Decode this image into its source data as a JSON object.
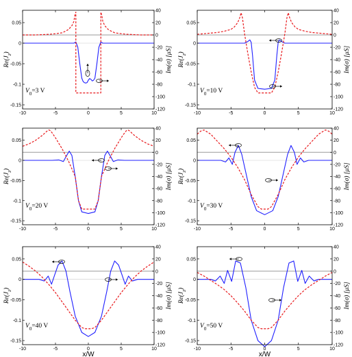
{
  "figure": {
    "panel_count": 6,
    "colors": {
      "re_curve": "#1f1fff",
      "im_curve": "#e8181b",
      "zero_line": "#9a9a9a",
      "frame": "#000000"
    }
  },
  "chart_data": [
    {
      "type": "line",
      "panel_label": "V₀=3 V",
      "voltage_V": 3,
      "xlabel": "",
      "ylabel_left": "Re(J_z)",
      "ylabel_right": "Im(σ) [μS]",
      "xlim": [
        -10,
        10
      ],
      "ylim_left": [
        -0.16,
        0.08
      ],
      "ylim_right": [
        -120,
        40
      ],
      "xticks": [
        "-10",
        "-5",
        "0",
        "5",
        "10"
      ],
      "yticks_left": [
        "0.05",
        "0",
        "-0.05",
        "-0.1",
        "-0.15"
      ],
      "yticks_right": [
        "40",
        "20",
        "0",
        "-20",
        "-40",
        "-60",
        "-80",
        "-100",
        "-120"
      ],
      "grid": false,
      "series": [
        {
          "axis": "left",
          "x": [
            -10,
            -2.2,
            -1.9,
            -1.6,
            -1.3,
            -1.0,
            -0.8,
            -0.6,
            -0.4,
            -0.2,
            0,
            0.2,
            0.4,
            0.6,
            0.8,
            1.0,
            1.3,
            1.6,
            1.9,
            2.2,
            10
          ],
          "y": [
            0,
            0,
            0.003,
            -0.01,
            -0.05,
            -0.085,
            -0.093,
            -0.096,
            -0.097,
            -0.096,
            -0.09,
            -0.086,
            -0.088,
            -0.092,
            -0.09,
            -0.085,
            -0.05,
            -0.01,
            0.003,
            0,
            0
          ]
        },
        {
          "axis": "right",
          "x": [
            -10,
            -8,
            -6,
            -5,
            -4,
            -3.5,
            -3,
            -2.5,
            -2.2,
            -2.05,
            -1.9,
            -1.9,
            1.9,
            1.9,
            2.05,
            2.2,
            2.5,
            3,
            3.5,
            4,
            5,
            6,
            8,
            10
          ],
          "y": [
            0,
            0,
            1,
            2,
            3.5,
            6,
            9,
            15,
            22,
            32,
            37,
            -94,
            -94,
            37,
            32,
            22,
            15,
            9,
            6,
            3.5,
            2,
            1,
            0,
            0
          ]
        }
      ]
    },
    {
      "type": "line",
      "panel_label": "V₀=10 V",
      "voltage_V": 10,
      "xlabel": "",
      "ylabel_left": "Re(J_z)",
      "ylabel_right": "Im(σ) [μS]",
      "xlim": [
        -10,
        10
      ],
      "ylim_left": [
        -0.16,
        0.08
      ],
      "ylim_right": [
        -120,
        40
      ],
      "xticks": [
        "-10",
        "-5",
        "0",
        "5",
        "10"
      ],
      "yticks_left": [
        "0.05",
        "0",
        "-0.05",
        "-0.1",
        "-0.15"
      ],
      "yticks_right": [
        "40",
        "20",
        "0",
        "-20",
        "-40",
        "-60",
        "-80",
        "-100",
        "-120"
      ],
      "grid": false,
      "series": [
        {
          "axis": "left",
          "x": [
            -10,
            -3.5,
            -3.0,
            -2.5,
            -2.2,
            -2.0,
            -1.8,
            -1.5,
            -1.0,
            0,
            1.0,
            1.5,
            1.8,
            2.0,
            2.2,
            2.5,
            3.0,
            3.5,
            10
          ],
          "y": [
            0,
            0,
            0,
            0.004,
            0.008,
            0.002,
            -0.03,
            -0.09,
            -0.11,
            -0.112,
            -0.11,
            -0.09,
            -0.03,
            0.002,
            0.008,
            0.004,
            0,
            0,
            0
          ]
        },
        {
          "axis": "right",
          "x": [
            -10,
            -9,
            -8,
            -7,
            -6,
            -5,
            -4.5,
            -4,
            -3.7,
            -3.5,
            -3.3,
            -3.0,
            -2.5,
            -2.0,
            -1.5,
            -1.0,
            1.0,
            1.5,
            2.0,
            2.5,
            3.0,
            3.3,
            3.5,
            3.7,
            4,
            4.5,
            5,
            6,
            7,
            8,
            9,
            10
          ],
          "y": [
            1,
            2,
            3,
            4,
            6,
            9,
            13,
            20,
            28,
            36,
            28,
            3,
            -30,
            -60,
            -85,
            -94,
            -94,
            -85,
            -60,
            -30,
            3,
            28,
            36,
            28,
            20,
            13,
            9,
            6,
            4,
            3,
            2,
            1
          ]
        }
      ]
    },
    {
      "type": "line",
      "panel_label": "V₀=20 V",
      "voltage_V": 20,
      "xlabel": "",
      "ylabel_left": "Re(J_z)",
      "ylabel_right": "Im(σ) [μS]",
      "xlim": [
        -10,
        10
      ],
      "ylim_left": [
        -0.16,
        0.08
      ],
      "ylim_right": [
        -120,
        40
      ],
      "xticks": [
        "-10",
        "-5",
        "0",
        "5",
        "10"
      ],
      "yticks_left": [
        "0.05",
        "0",
        "-0.05",
        "-0.1",
        "-0.15"
      ],
      "yticks_right": [
        "40",
        "20",
        "0",
        "-20",
        "-40",
        "-60",
        "-80",
        "-100",
        "-120"
      ],
      "grid": false,
      "series": [
        {
          "axis": "left",
          "x": [
            -10,
            -5.5,
            -4.5,
            -3.8,
            -3.3,
            -2.9,
            -2.5,
            -2.0,
            -1.5,
            -1.0,
            0,
            1.0,
            1.5,
            2.0,
            2.5,
            2.9,
            3.3,
            3.8,
            4.5,
            5.5,
            10
          ],
          "y": [
            0,
            0,
            0.001,
            -0.003,
            0.012,
            0.023,
            0.012,
            -0.04,
            -0.1,
            -0.128,
            -0.132,
            -0.128,
            -0.1,
            -0.04,
            0.012,
            0.023,
            0.012,
            -0.003,
            0.001,
            0,
            0
          ]
        },
        {
          "axis": "right",
          "x": [
            -10,
            -9,
            -8,
            -7,
            -6.5,
            -6.2,
            -6.0,
            -5.8,
            -5.5,
            -5,
            -4.5,
            -4,
            -3,
            -2,
            -1.5,
            -1.0,
            1.0,
            1.5,
            2,
            3,
            4,
            4.5,
            5,
            5.5,
            5.8,
            6.0,
            6.2,
            6.5,
            7,
            8,
            9,
            10
          ],
          "y": [
            10,
            14,
            20,
            28,
            33,
            36,
            37,
            36,
            32,
            24,
            15,
            6,
            -15,
            -40,
            -80,
            -94,
            -94,
            -80,
            -40,
            -15,
            6,
            15,
            24,
            32,
            36,
            37,
            36,
            33,
            28,
            20,
            14,
            10
          ]
        }
      ]
    },
    {
      "type": "line",
      "panel_label": "V₀=30 V",
      "voltage_V": 30,
      "xlabel": "",
      "ylabel_left": "Re(J_z)",
      "ylabel_right": "Im(σ) [μS]",
      "xlim": [
        -10,
        10
      ],
      "ylim_left": [
        -0.16,
        0.08
      ],
      "ylim_right": [
        -120,
        40
      ],
      "xticks": [
        "-10",
        "-5",
        "0",
        "5",
        "10"
      ],
      "yticks_left": [
        "0.05",
        "0",
        "-0.05",
        "-0.1",
        "-0.15"
      ],
      "yticks_right": [
        "40",
        "20",
        "0",
        "-20",
        "-40",
        "-60",
        "-80",
        "-100",
        "-120"
      ],
      "grid": false,
      "series": [
        {
          "axis": "left",
          "x": [
            -10,
            -6.5,
            -5.8,
            -5.3,
            -4.8,
            -4.4,
            -3.9,
            -3.4,
            -2.8,
            -2.0,
            -1.2,
            0,
            1.2,
            2.0,
            2.8,
            3.4,
            3.9,
            4.4,
            4.8,
            5.3,
            5.8,
            6.5,
            10
          ],
          "y": [
            0,
            0,
            -0.004,
            0.006,
            -0.01,
            0.02,
            0.037,
            0.015,
            -0.03,
            -0.09,
            -0.125,
            -0.135,
            -0.125,
            -0.09,
            -0.03,
            0.015,
            0.037,
            0.02,
            -0.01,
            0.006,
            -0.004,
            0,
            0
          ]
        },
        {
          "axis": "right",
          "x": [
            -10,
            -9.5,
            -9,
            -8,
            -7,
            -6,
            -5,
            -4,
            -3,
            -2,
            -1,
            -0.5,
            0.5,
            1,
            2,
            3,
            4,
            5,
            6,
            7,
            8,
            9,
            9.5,
            10
          ],
          "y": [
            30,
            35,
            37,
            30,
            18,
            6,
            -8,
            -25,
            -45,
            -70,
            -90,
            -94,
            -94,
            -90,
            -70,
            -45,
            -25,
            -8,
            6,
            18,
            30,
            37,
            35,
            30
          ]
        }
      ]
    },
    {
      "type": "line",
      "panel_label": "V₀=40 V",
      "voltage_V": 40,
      "xlabel": "x/W",
      "ylabel_left": "Re(J_z)",
      "ylabel_right": "Im(σ) [μS]",
      "xlim": [
        -10,
        10
      ],
      "ylim_left": [
        -0.16,
        0.08
      ],
      "ylim_right": [
        -120,
        40
      ],
      "xticks": [
        "-10",
        "-5",
        "0",
        "5",
        "10"
      ],
      "yticks_left": [
        "0.05",
        "0",
        "-0.05",
        "-0.1",
        "-0.15"
      ],
      "yticks_right": [
        "40",
        "20",
        "0",
        "-20",
        "-40",
        "-60",
        "-80",
        "-100",
        "-120"
      ],
      "grid": false,
      "series": [
        {
          "axis": "left",
          "x": [
            -10,
            -7.5,
            -6.7,
            -6.1,
            -5.6,
            -5.1,
            -4.6,
            -4.0,
            -3.4,
            -2.8,
            -2.0,
            -1.0,
            0,
            1.0,
            2.0,
            2.8,
            3.4,
            4.0,
            4.6,
            5.1,
            5.6,
            6.1,
            6.7,
            7.5,
            10
          ],
          "y": [
            0,
            0,
            -0.004,
            0.008,
            -0.012,
            0.012,
            0.035,
            0.045,
            0.02,
            -0.03,
            -0.09,
            -0.13,
            -0.14,
            -0.13,
            -0.09,
            -0.03,
            0.02,
            0.045,
            0.035,
            0.012,
            -0.012,
            0.008,
            -0.004,
            0,
            0
          ]
        },
        {
          "axis": "right",
          "x": [
            -10,
            -9,
            -8,
            -7,
            -6,
            -5,
            -4,
            -3,
            -2,
            -1,
            -0.5,
            0.5,
            1,
            2,
            3,
            4,
            5,
            6,
            7,
            8,
            9,
            10
          ],
          "y": [
            15,
            8,
            0,
            -10,
            -22,
            -35,
            -50,
            -65,
            -80,
            -92,
            -94,
            -94,
            -92,
            -80,
            -65,
            -50,
            -35,
            -22,
            -10,
            0,
            8,
            15
          ]
        }
      ]
    },
    {
      "type": "line",
      "panel_label": "V₀=50 V",
      "voltage_V": 50,
      "xlabel": "x/W",
      "ylabel_left": "Re(J_z)",
      "ylabel_right": "Im(σ) [μS]",
      "xlim": [
        -10,
        10
      ],
      "ylim_left": [
        -0.16,
        0.08
      ],
      "ylim_right": [
        -120,
        40
      ],
      "xticks": [
        "-10",
        "-5",
        "0",
        "5",
        "10"
      ],
      "yticks_left": [
        "0.05",
        "0",
        "-0.05",
        "-0.1",
        "-0.15"
      ],
      "yticks_right": [
        "40",
        "20",
        "0",
        "-20",
        "-40",
        "-60",
        "-80",
        "-100",
        "-120"
      ],
      "grid": false,
      "series": [
        {
          "axis": "left",
          "x": [
            -10,
            -8,
            -7.3,
            -6.6,
            -6.0,
            -5.5,
            -4.9,
            -4.3,
            -3.6,
            -2.8,
            -2.0,
            -1.0,
            0,
            1.0,
            2.0,
            2.8,
            3.6,
            4.3,
            4.9,
            5.5,
            6.0,
            6.6,
            7.3,
            8,
            10
          ],
          "y": [
            0,
            0,
            -0.004,
            0.008,
            -0.01,
            0.022,
            -0.005,
            0.045,
            0.04,
            -0.02,
            -0.1,
            -0.15,
            -0.165,
            -0.15,
            -0.1,
            -0.02,
            0.04,
            0.045,
            -0.005,
            0.022,
            -0.01,
            0.008,
            -0.004,
            0,
            0
          ]
        },
        {
          "axis": "right",
          "x": [
            -10,
            -9,
            -8,
            -7,
            -6,
            -5,
            -4,
            -3,
            -2,
            -1,
            -0.5,
            0.5,
            1,
            2,
            3,
            4,
            5,
            6,
            7,
            8,
            9,
            10
          ],
          "y": [
            -2,
            -8,
            -15,
            -22,
            -30,
            -40,
            -52,
            -65,
            -80,
            -92,
            -94,
            -94,
            -92,
            -80,
            -65,
            -52,
            -40,
            -30,
            -22,
            -15,
            -8,
            -2
          ]
        }
      ]
    }
  ]
}
